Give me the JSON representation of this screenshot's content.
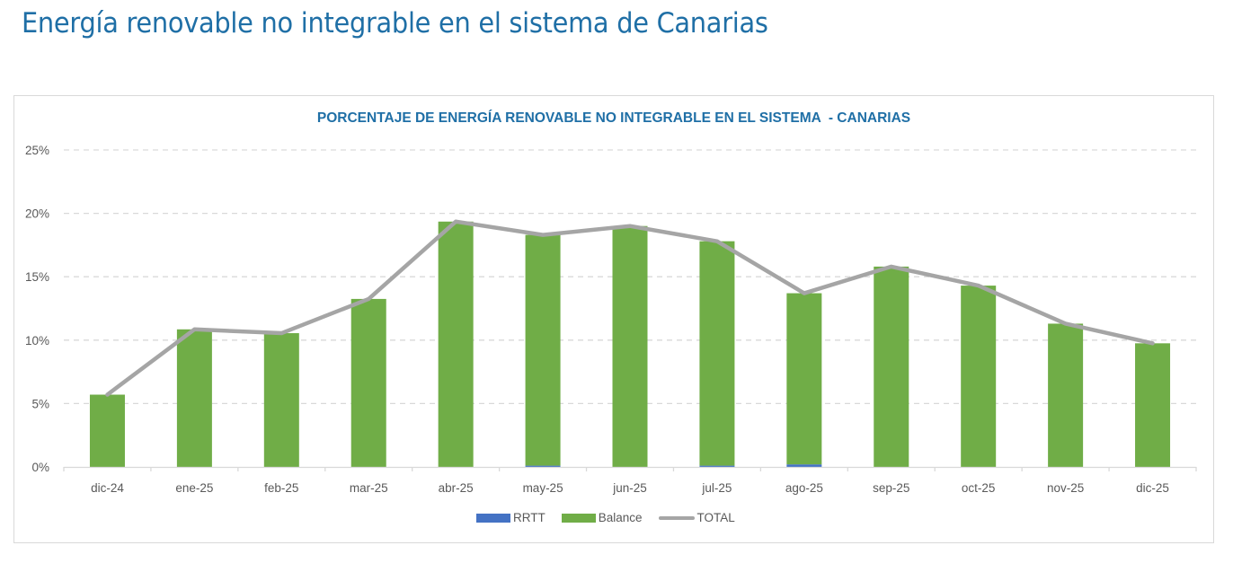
{
  "page": {
    "title": "Energía renovable no integrable en el sistema de Canarias"
  },
  "colors": {
    "title": "#1f6fa6",
    "rrtt": "#4472c4",
    "balance": "#70ad47",
    "total": "#a5a5a5",
    "grid": "#d9d9d9",
    "axis_text": "#595959"
  },
  "chart_data": {
    "type": "bar",
    "stacked": true,
    "title": "PORCENTAJE DE ENERGÍA RENOVABLE NO INTEGRABLE EN EL SISTEMA  - CANARIAS",
    "xlabel": "",
    "ylabel": "",
    "ylim": [
      0,
      25
    ],
    "yticks": [
      0,
      5,
      10,
      15,
      20,
      25
    ],
    "ytick_labels": [
      "0%",
      "5%",
      "10%",
      "15%",
      "20%",
      "25%"
    ],
    "grid": true,
    "legend_position": "bottom",
    "categories": [
      "dic-24",
      "ene-25",
      "feb-25",
      "mar-25",
      "abr-25",
      "may-25",
      "jun-25",
      "jul-25",
      "ago-25",
      "sep-25",
      "oct-25",
      "nov-25",
      "dic-25"
    ],
    "series": [
      {
        "name": "RRTT",
        "kind": "bar",
        "values": [
          0.0,
          0.0,
          0.0,
          0.0,
          0.0,
          0.1,
          0.0,
          0.1,
          0.2,
          0.0,
          0.0,
          0.0,
          0.0
        ]
      },
      {
        "name": "Balance",
        "kind": "bar",
        "values": [
          5.7,
          10.85,
          10.55,
          13.25,
          19.35,
          18.2,
          19.0,
          17.7,
          13.5,
          15.8,
          14.3,
          11.3,
          9.75
        ]
      },
      {
        "name": "TOTAL",
        "kind": "line",
        "values": [
          5.7,
          10.85,
          10.55,
          13.25,
          19.35,
          18.3,
          19.0,
          17.8,
          13.7,
          15.8,
          14.3,
          11.3,
          9.75
        ]
      }
    ]
  },
  "legend": [
    {
      "label": "RRTT"
    },
    {
      "label": "Balance"
    },
    {
      "label": "TOTAL"
    }
  ]
}
